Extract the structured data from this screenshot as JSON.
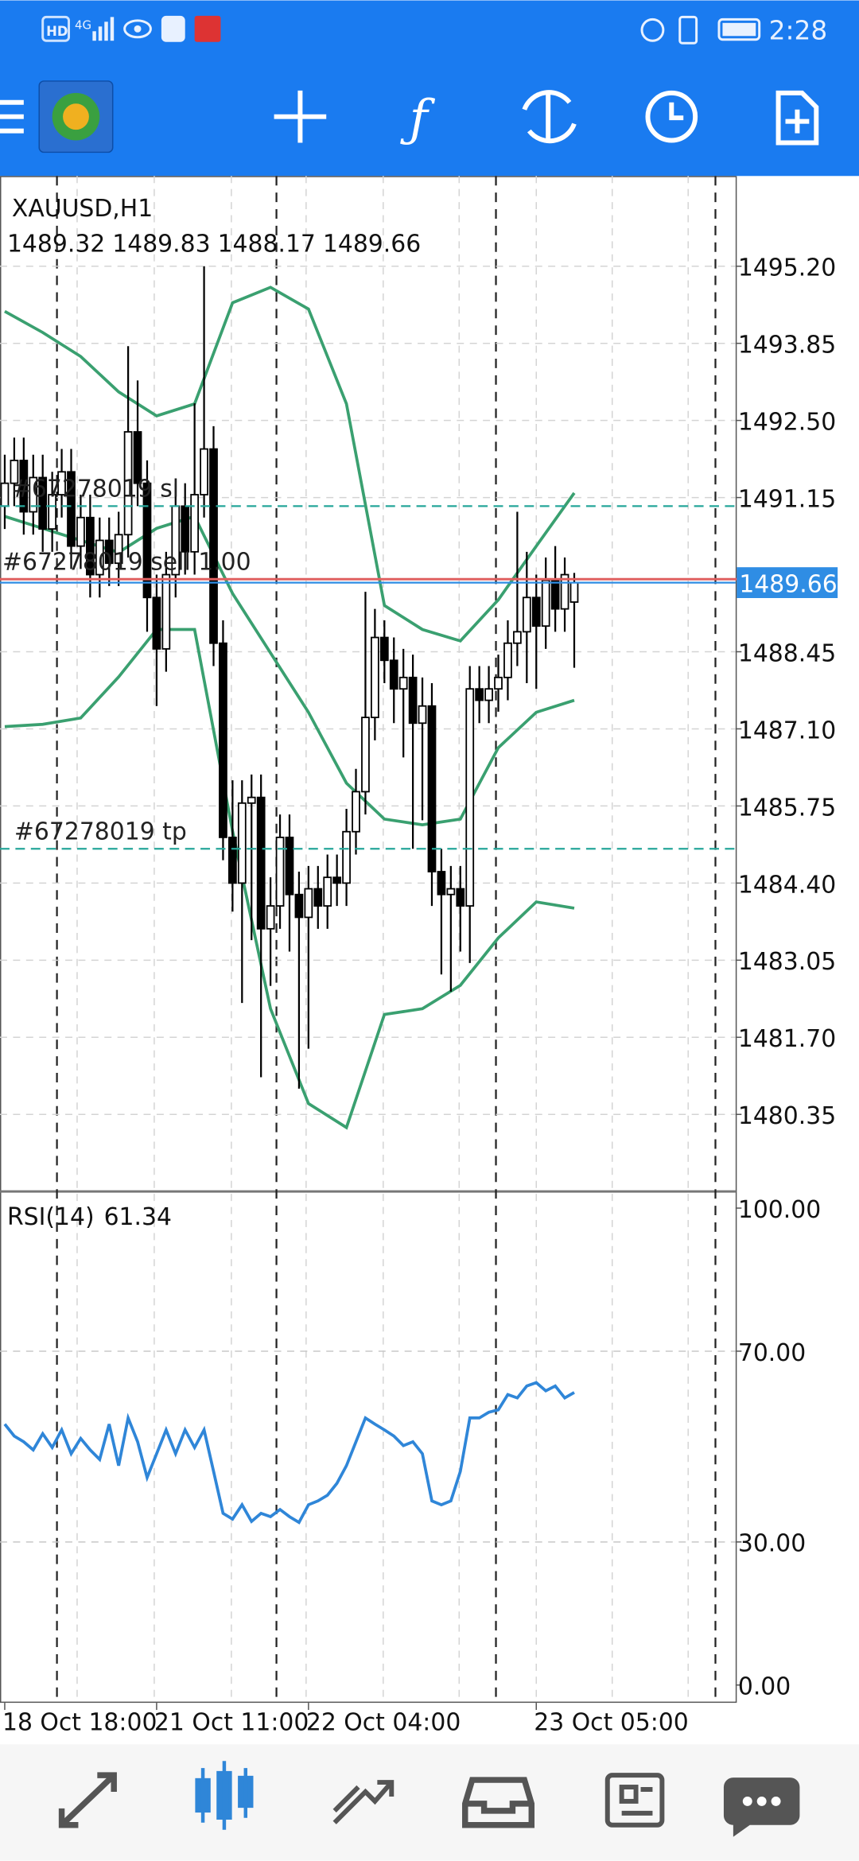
{
  "status_bar": {
    "network": [
      "HD",
      "4G"
    ],
    "time": "2:28"
  },
  "chart_data": [
    {
      "type": "candlestick",
      "title": "XAUUSD,H1",
      "xlim": [
        -0.5,
        77
      ],
      "xticks": [
        {
          "value": 0,
          "label": "18 Oct 18:00"
        },
        {
          "value": 16,
          "label": "21 Oct 11:00"
        },
        {
          "value": 32,
          "label": "22 Oct 04:00"
        },
        {
          "value": 56,
          "label": "23 Oct 05:00"
        }
      ],
      "ylim": [
        1479.0,
        1496.78
      ],
      "yticks": [
        {
          "value": 1495.2,
          "label": "1495.20"
        },
        {
          "value": 1493.85,
          "label": "1493.85"
        },
        {
          "value": 1492.5,
          "label": "1492.50"
        },
        {
          "value": 1491.15,
          "label": "1491.15"
        },
        {
          "value": 1488.45,
          "label": "1488.45"
        },
        {
          "value": 1487.1,
          "label": "1487.10"
        },
        {
          "value": 1485.75,
          "label": "1485.75"
        },
        {
          "value": 1484.4,
          "label": "1484.40"
        },
        {
          "value": 1483.05,
          "label": "1483.05"
        },
        {
          "value": 1481.7,
          "label": "1481.70"
        },
        {
          "value": 1480.35,
          "label": "1480.35"
        }
      ],
      "grid": true,
      "up_color": "#ffffff",
      "down_color": "#000000",
      "bid_color": "#2f8de4",
      "open": [
        1491.0,
        1491.4,
        1491.8,
        1490.9,
        1491.5,
        1490.6,
        1491.2,
        1491.6,
        1490.3,
        1490.8,
        1489.8,
        1490.4,
        1490.0,
        1490.5,
        1492.3,
        1491.4,
        1489.4,
        1488.5,
        1489.8,
        1491.0,
        1490.2,
        1491.2,
        1492.0,
        1488.6,
        1485.2,
        1484.4,
        1485.8,
        1485.9,
        1483.6,
        1484.0,
        1485.2,
        1484.2,
        1483.8,
        1484.3,
        1484.0,
        1484.5,
        1484.4,
        1485.3,
        1486.0,
        1487.3,
        1488.7,
        1488.3,
        1487.8,
        1488.0,
        1487.2,
        1487.5,
        1484.6,
        1484.2,
        1484.3,
        1484.0,
        1487.8,
        1487.6,
        1487.8,
        1488.0,
        1488.6,
        1488.8,
        1489.4,
        1488.9,
        1489.7,
        1489.2,
        1489.32
      ],
      "high": [
        1491.9,
        1492.2,
        1492.2,
        1491.9,
        1491.9,
        1491.6,
        1492.0,
        1492.0,
        1491.2,
        1491.2,
        1490.8,
        1490.8,
        1490.9,
        1493.8,
        1493.2,
        1491.8,
        1489.8,
        1490.2,
        1491.4,
        1491.4,
        1492.8,
        1495.2,
        1492.4,
        1489.0,
        1486.2,
        1486.2,
        1486.3,
        1486.3,
        1484.5,
        1485.6,
        1485.6,
        1484.6,
        1484.7,
        1484.7,
        1484.9,
        1484.9,
        1485.7,
        1486.4,
        1489.5,
        1489.2,
        1489.0,
        1488.7,
        1488.5,
        1488.4,
        1488.0,
        1487.9,
        1485.0,
        1484.7,
        1484.7,
        1488.2,
        1488.2,
        1488.2,
        1488.4,
        1489.0,
        1490.9,
        1490.2,
        1489.8,
        1490.1,
        1490.3,
        1490.1,
        1489.83
      ],
      "low": [
        1490.6,
        1491.0,
        1490.5,
        1490.5,
        1490.2,
        1490.2,
        1490.8,
        1489.9,
        1489.9,
        1489.4,
        1489.4,
        1489.6,
        1489.6,
        1490.1,
        1491.0,
        1488.8,
        1487.5,
        1488.1,
        1489.4,
        1489.8,
        1489.8,
        1490.8,
        1488.2,
        1484.8,
        1483.9,
        1482.3,
        1483.4,
        1481.0,
        1482.6,
        1483.6,
        1483.2,
        1480.8,
        1481.5,
        1483.6,
        1483.6,
        1484.0,
        1484.0,
        1484.9,
        1485.6,
        1486.9,
        1487.9,
        1487.2,
        1486.6,
        1485.0,
        1485.5,
        1484.0,
        1482.8,
        1482.5,
        1483.2,
        1483.0,
        1487.2,
        1487.2,
        1487.4,
        1487.6,
        1488.2,
        1487.9,
        1487.8,
        1488.5,
        1488.8,
        1488.8,
        1488.17
      ],
      "close": [
        1491.4,
        1491.8,
        1490.9,
        1491.5,
        1490.6,
        1491.2,
        1491.6,
        1490.3,
        1490.8,
        1489.8,
        1490.4,
        1490.0,
        1490.5,
        1492.3,
        1491.4,
        1489.4,
        1488.5,
        1489.8,
        1491.0,
        1490.2,
        1491.2,
        1492.0,
        1488.6,
        1485.2,
        1484.4,
        1485.8,
        1485.9,
        1483.6,
        1484.0,
        1485.2,
        1484.2,
        1483.8,
        1484.3,
        1484.0,
        1484.5,
        1484.4,
        1485.3,
        1486.0,
        1487.3,
        1488.7,
        1488.3,
        1487.8,
        1488.0,
        1487.2,
        1487.5,
        1484.6,
        1484.2,
        1484.3,
        1484.0,
        1487.8,
        1487.6,
        1487.8,
        1488.0,
        1488.6,
        1488.8,
        1489.4,
        1488.9,
        1489.7,
        1489.2,
        1489.8,
        1489.66
      ],
      "bands": {
        "color": "#3aa070",
        "x": [
          0,
          4,
          8,
          12,
          16,
          20,
          24,
          28,
          32,
          36,
          40,
          44,
          48,
          52,
          56,
          60
        ],
        "upper": [
          1494.41,
          1494.04,
          1493.62,
          1493.0,
          1492.58,
          1492.79,
          1494.56,
          1494.83,
          1494.45,
          1492.79,
          1489.26,
          1488.84,
          1488.64,
          1489.36,
          1490.3,
          1491.23
        ],
        "middle": [
          1490.82,
          1490.61,
          1490.4,
          1490.19,
          1490.61,
          1490.82,
          1489.47,
          1488.43,
          1487.39,
          1486.15,
          1485.52,
          1485.42,
          1485.52,
          1486.77,
          1487.39,
          1487.6
        ],
        "lower": [
          1487.14,
          1487.18,
          1487.29,
          1488.01,
          1488.84,
          1488.84,
          1485.31,
          1482.2,
          1480.54,
          1480.12,
          1482.1,
          1482.2,
          1482.61,
          1483.44,
          1484.07,
          1483.96
        ]
      },
      "levels": [
        {
          "label": "#67278019 sl",
          "value": 1491.0,
          "color": "#26a69a",
          "dashed": true
        },
        {
          "label": "#67278019 sell 1.00",
          "value": 1489.72,
          "color": "#e06060",
          "dashed": false
        },
        {
          "label": "#67278019 tp",
          "value": 1485.0,
          "color": "#26a69a",
          "dashed": true
        }
      ]
    },
    {
      "type": "line",
      "title": "RSI(14)",
      "color": "#2f86d8",
      "ylim": [
        0,
        100
      ],
      "yticks": [
        {
          "value": 0,
          "label": "0.00"
        },
        {
          "value": 30,
          "label": "30.00"
        },
        {
          "value": 70,
          "label": "70.00"
        },
        {
          "value": 100,
          "label": "100.00"
        }
      ],
      "values": [
        54.7,
        52.2,
        51,
        49.3,
        52.7,
        49.8,
        53.5,
        48.5,
        51.7,
        49.3,
        47.3,
        54.7,
        46,
        56,
        51,
        43.5,
        48.5,
        53.5,
        48.5,
        53.5,
        49.8,
        53.5,
        44.8,
        36,
        34.8,
        37.8,
        34.3,
        36,
        35.3,
        36.8,
        35.3,
        34.1,
        37.8,
        38.6,
        39.8,
        42.3,
        46,
        51,
        56,
        54.7,
        53.5,
        52.2,
        50.2,
        51,
        48.5,
        38.6,
        37.8,
        38.6,
        44.8,
        56,
        56,
        57.2,
        57.7,
        60.9,
        60.2,
        62.7,
        63.4,
        61.7,
        62.7,
        60.2,
        61.34
      ]
    }
  ]
}
